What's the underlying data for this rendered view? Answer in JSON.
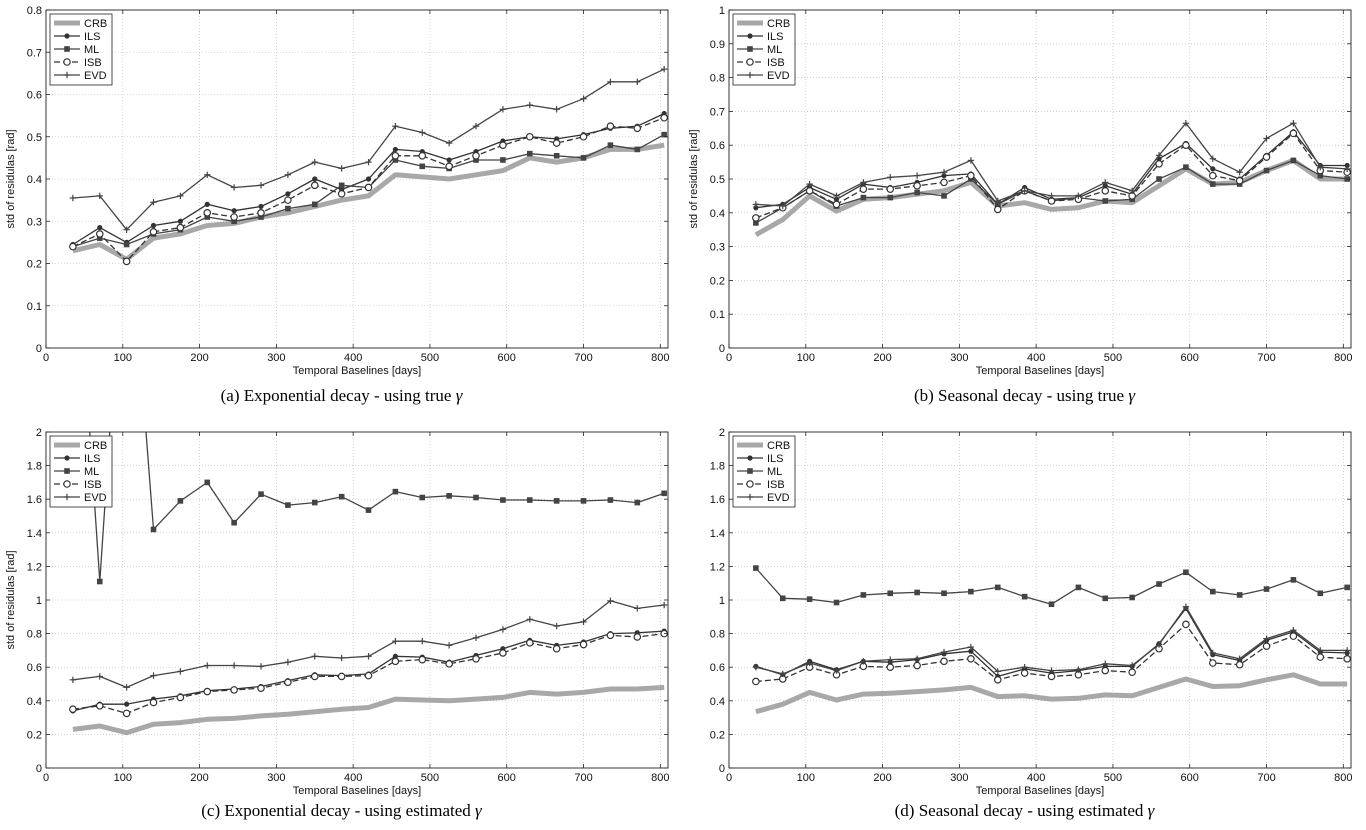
{
  "chart_data": [
    {
      "type": "line",
      "caption_prefix": "(a) Exponential decay - using true",
      "caption_symbol": "γ",
      "xlabel": "Temporal Baselines [days]",
      "ylabel": "std of residulas [rad]",
      "xlim": [
        0,
        810
      ],
      "ylim": [
        0,
        0.8
      ],
      "xticks": [
        0,
        100,
        200,
        300,
        400,
        500,
        600,
        700,
        800
      ],
      "yticks": [
        0,
        0.1,
        0.2,
        0.3,
        0.4,
        0.5,
        0.6,
        0.7,
        0.8
      ],
      "x": [
        35,
        70,
        105,
        140,
        175,
        210,
        245,
        280,
        315,
        350,
        385,
        420,
        455,
        490,
        525,
        560,
        595,
        630,
        665,
        700,
        735,
        770,
        805
      ],
      "grid": true,
      "legend_position": "top-left",
      "series": [
        {
          "name": "CRB",
          "values": [
            0.23,
            0.245,
            0.21,
            0.26,
            0.27,
            0.29,
            0.295,
            0.31,
            0.32,
            0.335,
            0.35,
            0.36,
            0.41,
            0.405,
            0.4,
            0.41,
            0.42,
            0.45,
            0.44,
            0.45,
            0.47,
            0.47,
            0.48
          ]
        },
        {
          "name": "ILS",
          "values": [
            0.245,
            0.285,
            0.25,
            0.29,
            0.3,
            0.34,
            0.325,
            0.335,
            0.365,
            0.4,
            0.375,
            0.4,
            0.47,
            0.465,
            0.445,
            0.465,
            0.49,
            0.5,
            0.495,
            0.505,
            0.52,
            0.525,
            0.555
          ]
        },
        {
          "name": "ML",
          "values": [
            0.24,
            0.26,
            0.245,
            0.27,
            0.28,
            0.31,
            0.3,
            0.31,
            0.33,
            0.34,
            0.385,
            0.38,
            0.445,
            0.43,
            0.425,
            0.445,
            0.445,
            0.46,
            0.455,
            0.45,
            0.48,
            0.47,
            0.505
          ]
        },
        {
          "name": "ISB",
          "values": [
            0.24,
            0.27,
            0.205,
            0.275,
            0.285,
            0.32,
            0.31,
            0.32,
            0.35,
            0.385,
            0.365,
            0.38,
            0.455,
            0.455,
            0.43,
            0.455,
            0.48,
            0.5,
            0.485,
            0.5,
            0.525,
            0.52,
            0.545
          ]
        },
        {
          "name": "EVD",
          "values": [
            0.355,
            0.36,
            0.28,
            0.345,
            0.36,
            0.41,
            0.38,
            0.385,
            0.41,
            0.44,
            0.425,
            0.44,
            0.525,
            0.51,
            0.485,
            0.525,
            0.565,
            0.575,
            0.565,
            0.59,
            0.63,
            0.63,
            0.66
          ]
        }
      ]
    },
    {
      "type": "line",
      "caption_prefix": "(b) Seasonal decay - using true",
      "caption_symbol": "γ",
      "xlabel": "Temporal Baselines [days]",
      "ylabel": "std of residulas [rad]",
      "xlim": [
        0,
        810
      ],
      "ylim": [
        0,
        1
      ],
      "xticks": [
        0,
        100,
        200,
        300,
        400,
        500,
        600,
        700,
        800
      ],
      "yticks": [
        0,
        0.1,
        0.2,
        0.3,
        0.4,
        0.5,
        0.6,
        0.7,
        0.8,
        0.9,
        1
      ],
      "x": [
        35,
        70,
        105,
        140,
        175,
        210,
        245,
        280,
        315,
        350,
        385,
        420,
        455,
        490,
        525,
        560,
        595,
        630,
        665,
        700,
        735,
        770,
        805
      ],
      "grid": true,
      "legend_position": "top-left",
      "series": [
        {
          "name": "CRB",
          "values": [
            0.335,
            0.38,
            0.45,
            0.405,
            0.44,
            0.445,
            0.455,
            0.465,
            0.49,
            0.42,
            0.43,
            0.41,
            0.415,
            0.435,
            0.43,
            0.48,
            0.53,
            0.485,
            0.49,
            0.525,
            0.555,
            0.5,
            0.5
          ]
        },
        {
          "name": "ILS",
          "values": [
            0.415,
            0.425,
            0.475,
            0.44,
            0.485,
            0.475,
            0.49,
            0.51,
            0.515,
            0.425,
            0.475,
            0.44,
            0.445,
            0.48,
            0.455,
            0.56,
            0.605,
            0.53,
            0.5,
            0.57,
            0.64,
            0.54,
            0.54
          ]
        },
        {
          "name": "ML",
          "values": [
            0.37,
            0.415,
            0.465,
            0.42,
            0.445,
            0.445,
            0.46,
            0.45,
            0.5,
            0.425,
            0.465,
            0.435,
            0.445,
            0.435,
            0.44,
            0.5,
            0.535,
            0.485,
            0.485,
            0.525,
            0.555,
            0.51,
            0.5
          ]
        },
        {
          "name": "ISB",
          "values": [
            0.385,
            0.415,
            0.465,
            0.425,
            0.47,
            0.47,
            0.48,
            0.49,
            0.51,
            0.41,
            0.465,
            0.435,
            0.44,
            0.465,
            0.45,
            0.545,
            0.6,
            0.51,
            0.495,
            0.565,
            0.635,
            0.525,
            0.52
          ]
        },
        {
          "name": "EVD",
          "values": [
            0.425,
            0.42,
            0.485,
            0.45,
            0.49,
            0.505,
            0.51,
            0.52,
            0.555,
            0.435,
            0.465,
            0.45,
            0.45,
            0.49,
            0.465,
            0.57,
            0.665,
            0.56,
            0.52,
            0.62,
            0.665,
            0.535,
            0.53
          ]
        }
      ]
    },
    {
      "type": "line",
      "caption_prefix": "(c) Exponential decay - using estimated",
      "caption_symbol": "γ",
      "xlabel": "Temporal Baselines [days]",
      "ylabel": "std of residulas [rad]",
      "xlim": [
        0,
        810
      ],
      "ylim": [
        0,
        2
      ],
      "xticks": [
        0,
        100,
        200,
        300,
        400,
        500,
        600,
        700,
        800
      ],
      "yticks": [
        0,
        0.2,
        0.4,
        0.6,
        0.8,
        1,
        1.2,
        1.4,
        1.6,
        1.8,
        2
      ],
      "x": [
        35,
        70,
        105,
        140,
        175,
        210,
        245,
        280,
        315,
        350,
        385,
        420,
        455,
        490,
        525,
        560,
        595,
        630,
        665,
        700,
        735,
        770,
        805
      ],
      "grid": true,
      "legend_position": "top-left",
      "series": [
        {
          "name": "CRB",
          "values": [
            0.23,
            0.25,
            0.21,
            0.26,
            0.27,
            0.29,
            0.295,
            0.31,
            0.32,
            0.335,
            0.35,
            0.36,
            0.41,
            0.405,
            0.4,
            0.41,
            0.42,
            0.45,
            0.44,
            0.45,
            0.47,
            0.47,
            0.48
          ]
        },
        {
          "name": "ILS",
          "values": [
            0.34,
            0.38,
            0.38,
            0.41,
            0.43,
            0.46,
            0.47,
            0.485,
            0.52,
            0.555,
            0.55,
            0.56,
            0.665,
            0.66,
            0.63,
            0.67,
            0.71,
            0.76,
            0.73,
            0.75,
            0.8,
            0.805,
            0.815
          ]
        },
        {
          "name": "ML",
          "values": [
            3.5,
            1.11,
            3.5,
            1.42,
            1.59,
            1.7,
            1.46,
            1.63,
            1.565,
            1.58,
            1.615,
            1.535,
            1.645,
            1.61,
            1.62,
            1.61,
            1.595,
            1.595,
            1.59,
            1.59,
            1.595,
            1.58,
            1.635
          ]
        },
        {
          "name": "ISB",
          "values": [
            0.35,
            0.37,
            0.325,
            0.39,
            0.42,
            0.455,
            0.465,
            0.475,
            0.51,
            0.545,
            0.545,
            0.55,
            0.635,
            0.645,
            0.62,
            0.65,
            0.685,
            0.745,
            0.71,
            0.735,
            0.79,
            0.78,
            0.8
          ]
        },
        {
          "name": "EVD",
          "values": [
            0.525,
            0.545,
            0.48,
            0.55,
            0.575,
            0.61,
            0.61,
            0.605,
            0.63,
            0.665,
            0.655,
            0.665,
            0.755,
            0.755,
            0.73,
            0.775,
            0.825,
            0.885,
            0.845,
            0.87,
            0.995,
            0.95,
            0.97
          ]
        }
      ]
    },
    {
      "type": "line",
      "caption_prefix": "(d) Seasonal decay - using estimated",
      "caption_symbol": "γ",
      "xlabel": "Temporal Baselines [days]",
      "ylabel": "",
      "xlim": [
        0,
        810
      ],
      "ylim": [
        0,
        2
      ],
      "xticks": [
        0,
        100,
        200,
        300,
        400,
        500,
        600,
        700,
        800
      ],
      "yticks": [
        0,
        0.2,
        0.4,
        0.6,
        0.8,
        1,
        1.2,
        1.4,
        1.6,
        1.8,
        2
      ],
      "x": [
        35,
        70,
        105,
        140,
        175,
        210,
        245,
        280,
        315,
        350,
        385,
        420,
        455,
        490,
        525,
        560,
        595,
        630,
        665,
        700,
        735,
        770,
        805
      ],
      "grid": true,
      "legend_position": "top-left",
      "series": [
        {
          "name": "CRB",
          "values": [
            0.335,
            0.38,
            0.45,
            0.405,
            0.44,
            0.445,
            0.455,
            0.465,
            0.48,
            0.425,
            0.43,
            0.41,
            0.415,
            0.435,
            0.43,
            0.48,
            0.53,
            0.485,
            0.49,
            0.525,
            0.555,
            0.5,
            0.5
          ]
        },
        {
          "name": "ILS",
          "values": [
            0.605,
            0.555,
            0.635,
            0.585,
            0.635,
            0.63,
            0.645,
            0.68,
            0.695,
            0.545,
            0.59,
            0.565,
            0.58,
            0.605,
            0.605,
            0.74,
            0.95,
            0.675,
            0.64,
            0.76,
            0.81,
            0.69,
            0.685
          ]
        },
        {
          "name": "ML",
          "values": [
            1.19,
            1.01,
            1.005,
            0.985,
            1.03,
            1.04,
            1.045,
            1.04,
            1.05,
            1.075,
            1.02,
            0.975,
            1.075,
            1.01,
            1.015,
            1.095,
            1.165,
            1.05,
            1.03,
            1.065,
            1.12,
            1.04,
            1.075
          ]
        },
        {
          "name": "ISB",
          "values": [
            0.515,
            0.53,
            0.6,
            0.555,
            0.605,
            0.6,
            0.61,
            0.635,
            0.65,
            0.525,
            0.565,
            0.545,
            0.555,
            0.58,
            0.57,
            0.71,
            0.855,
            0.625,
            0.615,
            0.725,
            0.785,
            0.66,
            0.65
          ]
        },
        {
          "name": "EVD",
          "values": [
            0.6,
            0.56,
            0.625,
            0.58,
            0.635,
            0.645,
            0.65,
            0.69,
            0.72,
            0.575,
            0.6,
            0.58,
            0.585,
            0.62,
            0.61,
            0.735,
            0.96,
            0.685,
            0.65,
            0.77,
            0.82,
            0.7,
            0.7
          ]
        }
      ]
    }
  ]
}
